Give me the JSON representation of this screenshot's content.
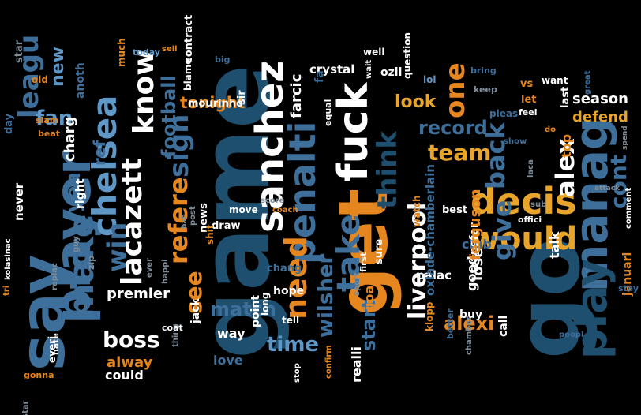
{
  "palette": {
    "white": "#ffffff",
    "navy": "#1e4f6e",
    "blue": "#3d6f9a",
    "lightblue": "#5f97c6",
    "orange": "#e6861e",
    "gold": "#e9a52a",
    "tan": "#d4a357",
    "grey": "#7f8d99"
  },
  "words": [
    {
      "text": "game",
      "c": "navy",
      "fs": 120,
      "rot": true
    },
    {
      "text": "go",
      "c": "navy",
      "fs": 110,
      "rot": true
    },
    {
      "text": "get",
      "c": "orange",
      "fs": 86,
      "rot": true
    },
    {
      "text": "say",
      "c": "blue",
      "fs": 78,
      "rot": true
    },
    {
      "text": "player",
      "c": "blue",
      "fs": 62,
      "rot": true
    },
    {
      "text": "sanchez",
      "c": "white",
      "fs": 48,
      "rot": true
    },
    {
      "text": "fuck",
      "c": "white",
      "fs": 52,
      "rot": true
    },
    {
      "text": "manag",
      "c": "blue",
      "fs": 58,
      "rot": true
    },
    {
      "text": "play",
      "c": "navy",
      "fs": 54,
      "rot": true
    },
    {
      "text": "penalti",
      "c": "blue",
      "fs": 46,
      "rot": true
    },
    {
      "text": "decis",
      "c": "gold",
      "fs": 46,
      "rot": false
    },
    {
      "text": "would",
      "c": "gold",
      "fs": 40,
      "rot": false
    },
    {
      "text": "make",
      "c": "blue",
      "fs": 44,
      "rot": true
    },
    {
      "text": "chelsea",
      "c": "lightblue",
      "fs": 42,
      "rot": true
    },
    {
      "text": "lacazett",
      "c": "white",
      "fs": 36,
      "rot": true
    },
    {
      "text": "know",
      "c": "white",
      "fs": 36,
      "rot": true
    },
    {
      "text": "take",
      "c": "blue",
      "fs": 40,
      "rot": true
    },
    {
      "text": "think",
      "c": "navy",
      "fs": 34,
      "rot": true
    },
    {
      "text": "need",
      "c": "orange",
      "fs": 38,
      "rot": true
    },
    {
      "text": "liverpool",
      "c": "white",
      "fs": 30,
      "rot": true
    },
    {
      "text": "leagu",
      "c": "blue",
      "fs": 34,
      "rot": true
    },
    {
      "text": "back",
      "c": "blue",
      "fs": 32,
      "rot": true
    },
    {
      "text": "alex",
      "c": "white",
      "fs": 32,
      "rot": true
    },
    {
      "text": "team",
      "c": "gold",
      "fs": 28,
      "rot": false
    },
    {
      "text": "record",
      "c": "blue",
      "fs": 24,
      "rot": false
    },
    {
      "text": "one",
      "c": "orange",
      "fs": 34,
      "rot": true
    },
    {
      "text": "give",
      "c": "blue",
      "fs": 32,
      "rot": true
    },
    {
      "text": "cont",
      "c": "blue",
      "fs": 28,
      "rot": true
    },
    {
      "text": "refere",
      "c": "orange",
      "fs": 32,
      "rot": true
    },
    {
      "text": "sign",
      "c": "blue",
      "fs": 34,
      "rot": true
    },
    {
      "text": "boss",
      "c": "white",
      "fs": 28,
      "rot": false
    },
    {
      "text": "time",
      "c": "lightblue",
      "fs": 26,
      "rot": false
    },
    {
      "text": "see",
      "c": "orange",
      "fs": 28,
      "rot": true
    },
    {
      "text": "match",
      "c": "blue",
      "fs": 24,
      "rot": false
    },
    {
      "text": "win",
      "c": "blue",
      "fs": 32,
      "rot": true
    },
    {
      "text": "fan",
      "c": "lightblue",
      "fs": 26,
      "rot": false
    },
    {
      "text": "year",
      "c": "blue",
      "fs": 26,
      "rot": true
    },
    {
      "text": "football",
      "c": "blue",
      "fs": 24,
      "rot": true
    },
    {
      "text": "wilsher",
      "c": "blue",
      "fs": 26,
      "rot": true
    },
    {
      "text": "start",
      "c": "blue",
      "fs": 24,
      "rot": true
    },
    {
      "text": "alexi",
      "c": "orange",
      "fs": 24,
      "rot": false
    },
    {
      "text": "look",
      "c": "gold",
      "fs": 22,
      "rot": false
    },
    {
      "text": "season",
      "c": "white",
      "fs": 18,
      "rot": false
    },
    {
      "text": "defend",
      "c": "gold",
      "fs": 18,
      "rot": false
    },
    {
      "text": "tonight",
      "c": "orange",
      "fs": 20,
      "rot": false
    },
    {
      "text": "premier",
      "c": "white",
      "fs": 18,
      "rot": false
    },
    {
      "text": "alway",
      "c": "orange",
      "fs": 18,
      "rot": false
    },
    {
      "text": "love",
      "c": "blue",
      "fs": 16,
      "rot": false
    },
    {
      "text": "way",
      "c": "white",
      "fs": 16,
      "rot": false
    },
    {
      "text": "new",
      "c": "lightblue",
      "fs": 22,
      "rot": true
    },
    {
      "text": "ref",
      "c": "blue",
      "fs": 20,
      "rot": true
    },
    {
      "text": "charg",
      "c": "white",
      "fs": 18,
      "rot": true
    },
    {
      "text": "anoth",
      "c": "blue",
      "fs": 14,
      "rot": true
    },
    {
      "text": "right",
      "c": "white",
      "fs": 14,
      "rot": true
    },
    {
      "text": "never",
      "c": "white",
      "fs": 15,
      "rot": true
    },
    {
      "text": "star",
      "c": "grey",
      "fs": 13,
      "rot": true
    },
    {
      "text": "day",
      "c": "blue",
      "fs": 13,
      "rot": true
    },
    {
      "text": "old",
      "c": "orange",
      "fs": 12,
      "rot": false
    },
    {
      "text": "slam",
      "c": "orange",
      "fs": 11,
      "rot": false
    },
    {
      "text": "beat",
      "c": "orange",
      "fs": 11,
      "rot": false
    },
    {
      "text": "much",
      "c": "orange",
      "fs": 12,
      "rot": true
    },
    {
      "text": "today",
      "c": "lightblue",
      "fs": 11,
      "rot": false
    },
    {
      "text": "sell",
      "c": "orange",
      "fs": 10,
      "rot": false
    },
    {
      "text": "contract",
      "c": "white",
      "fs": 13,
      "rot": true
    },
    {
      "text": "blame",
      "c": "white",
      "fs": 12,
      "rot": true
    },
    {
      "text": "big",
      "c": "blue",
      "fs": 11,
      "rot": false
    },
    {
      "text": "mourinho",
      "c": "white",
      "fs": 13,
      "rot": false
    },
    {
      "text": "sir",
      "c": "white",
      "fs": 13,
      "rot": true
    },
    {
      "text": "crystal",
      "c": "white",
      "fs": 15,
      "rot": false
    },
    {
      "text": "well",
      "c": "white",
      "fs": 12,
      "rot": false
    },
    {
      "text": "ozil",
      "c": "white",
      "fs": 14,
      "rot": false
    },
    {
      "text": "farcic",
      "c": "white",
      "fs": 18,
      "rot": true
    },
    {
      "text": "fa",
      "c": "blue",
      "fs": 14,
      "rot": true
    },
    {
      "text": "equal",
      "c": "white",
      "fs": 11,
      "rot": true
    },
    {
      "text": "wait",
      "c": "white",
      "fs": 10,
      "rot": true
    },
    {
      "text": "question",
      "c": "white",
      "fs": 12,
      "rot": true
    },
    {
      "text": "lol",
      "c": "lightblue",
      "fs": 12,
      "rot": false
    },
    {
      "text": "bring",
      "c": "blue",
      "fs": 11,
      "rot": false
    },
    {
      "text": "keep",
      "c": "grey",
      "fs": 11,
      "rot": false
    },
    {
      "text": "pleas",
      "c": "blue",
      "fs": 12,
      "rot": false
    },
    {
      "text": "vs",
      "c": "orange",
      "fs": 13,
      "rot": false
    },
    {
      "text": "let",
      "c": "orange",
      "fs": 13,
      "rot": false
    },
    {
      "text": "feel",
      "c": "white",
      "fs": 11,
      "rot": false
    },
    {
      "text": "want",
      "c": "white",
      "fs": 12,
      "rot": false
    },
    {
      "text": "last",
      "c": "white",
      "fs": 13,
      "rot": true
    },
    {
      "text": "great",
      "c": "blue",
      "fs": 10,
      "rot": true
    },
    {
      "text": "top",
      "c": "orange",
      "fs": 16,
      "rot": true
    },
    {
      "text": "do",
      "c": "orange",
      "fs": 10,
      "rot": false
    },
    {
      "text": "show",
      "c": "blue",
      "fs": 10,
      "rot": false
    },
    {
      "text": "laca",
      "c": "grey",
      "fs": 10,
      "rot": true
    },
    {
      "text": "spend",
      "c": "grey",
      "fs": 9,
      "rot": true
    },
    {
      "text": "attack",
      "c": "grey",
      "fs": 9,
      "rot": false
    },
    {
      "text": "sub",
      "c": "grey",
      "fs": 10,
      "rot": false
    },
    {
      "text": "offici",
      "c": "white",
      "fs": 11,
      "rot": false
    },
    {
      "text": "comment",
      "c": "white",
      "fs": 10,
      "rot": true
    },
    {
      "text": "januari",
      "c": "orange",
      "fs": 14,
      "rot": true
    },
    {
      "text": "stay",
      "c": "blue",
      "fs": 11,
      "rot": false
    },
    {
      "text": "peopl",
      "c": "blue",
      "fs": 10,
      "rot": false
    },
    {
      "text": "talk",
      "c": "white",
      "fs": 16,
      "rot": true
    },
    {
      "text": "club",
      "c": "blue",
      "fs": 16,
      "rot": false
    },
    {
      "text": "good",
      "c": "white",
      "fs": 16,
      "rot": true
    },
    {
      "text": "transfer",
      "c": "white",
      "fs": 14,
      "rot": true
    },
    {
      "text": "best",
      "c": "white",
      "fs": 13,
      "rot": false
    },
    {
      "text": "lose",
      "c": "white",
      "fs": 18,
      "rot": true
    },
    {
      "text": "ferguson",
      "c": "orange",
      "fs": 18,
      "rot": true
    },
    {
      "text": "palac",
      "c": "white",
      "fs": 15,
      "rot": false
    },
    {
      "text": "watch",
      "c": "orange",
      "fs": 12,
      "rot": true
    },
    {
      "text": "buy",
      "c": "white",
      "fs": 14,
      "rot": false
    },
    {
      "text": "better",
      "c": "blue",
      "fs": 11,
      "rot": true
    },
    {
      "text": "chamber",
      "c": "grey",
      "fs": 10,
      "rot": true
    },
    {
      "text": "call",
      "c": "white",
      "fs": 14,
      "rot": true
    },
    {
      "text": "klopp",
      "c": "orange",
      "fs": 12,
      "rot": true
    },
    {
      "text": "oxlade-chamberlain",
      "c": "blue",
      "fs": 15,
      "rot": true
    },
    {
      "text": "sure",
      "c": "white",
      "fs": 13,
      "rot": true
    },
    {
      "text": "first",
      "c": "white",
      "fs": 11,
      "rot": true
    },
    {
      "text": "sport",
      "c": "grey",
      "fs": 10,
      "rot": true
    },
    {
      "text": "goal",
      "c": "orange",
      "fs": 16,
      "rot": true
    },
    {
      "text": "realli",
      "c": "white",
      "fs": 16,
      "rot": true
    },
    {
      "text": "confirm",
      "c": "orange",
      "fs": 10,
      "rot": true
    },
    {
      "text": "stop",
      "c": "white",
      "fs": 10,
      "rot": true
    },
    {
      "text": "tell",
      "c": "white",
      "fs": 12,
      "rot": false
    },
    {
      "text": "hope",
      "c": "white",
      "fs": 14,
      "rot": false
    },
    {
      "text": "chang",
      "c": "blue",
      "fs": 13,
      "rot": false
    },
    {
      "text": "long",
      "c": "white",
      "fs": 12,
      "rot": true
    },
    {
      "text": "score",
      "c": "grey",
      "fs": 10,
      "rot": false
    },
    {
      "text": "coach",
      "c": "orange",
      "fs": 10,
      "rot": false
    },
    {
      "text": "point",
      "c": "white",
      "fs": 14,
      "rot": true
    },
    {
      "text": "move",
      "c": "white",
      "fs": 12,
      "rot": false
    },
    {
      "text": "draw",
      "c": "white",
      "fs": 13,
      "rot": false
    },
    {
      "text": "post",
      "c": "grey",
      "fs": 10,
      "rot": true
    },
    {
      "text": "news",
      "c": "white",
      "fs": 13,
      "rot": true
    },
    {
      "text": "shit",
      "c": "orange",
      "fs": 12,
      "rot": true
    },
    {
      "text": "ban",
      "c": "grey",
      "fs": 9,
      "rot": true
    },
    {
      "text": "thing",
      "c": "grey",
      "fs": 10,
      "rot": true
    },
    {
      "text": "jack",
      "c": "white",
      "fs": 14,
      "rot": true
    },
    {
      "text": "coat",
      "c": "white",
      "fs": 11,
      "rot": false
    },
    {
      "text": "could",
      "c": "white",
      "fs": 16,
      "rot": false
    },
    {
      "text": "zip",
      "c": "grey",
      "fs": 11,
      "rot": true
    },
    {
      "text": "replac",
      "c": "grey",
      "fs": 10,
      "rot": true
    },
    {
      "text": "guy",
      "c": "grey",
      "fs": 10,
      "rot": true
    },
    {
      "text": "hate",
      "c": "white",
      "fs": 11,
      "rot": true
    },
    {
      "text": "everi",
      "c": "white",
      "fs": 12,
      "rot": true
    },
    {
      "text": "star",
      "c": "grey",
      "fs": 10,
      "rot": true
    },
    {
      "text": "tri",
      "c": "orange",
      "fs": 10,
      "rot": true
    },
    {
      "text": "kolasinac",
      "c": "white",
      "fs": 10,
      "rot": true
    },
    {
      "text": "gonna",
      "c": "orange",
      "fs": 11,
      "rot": false
    },
    {
      "text": "happi",
      "c": "grey",
      "fs": 10,
      "rot": true
    },
    {
      "text": "ever",
      "c": "grey",
      "fs": 10,
      "rot": true
    }
  ]
}
